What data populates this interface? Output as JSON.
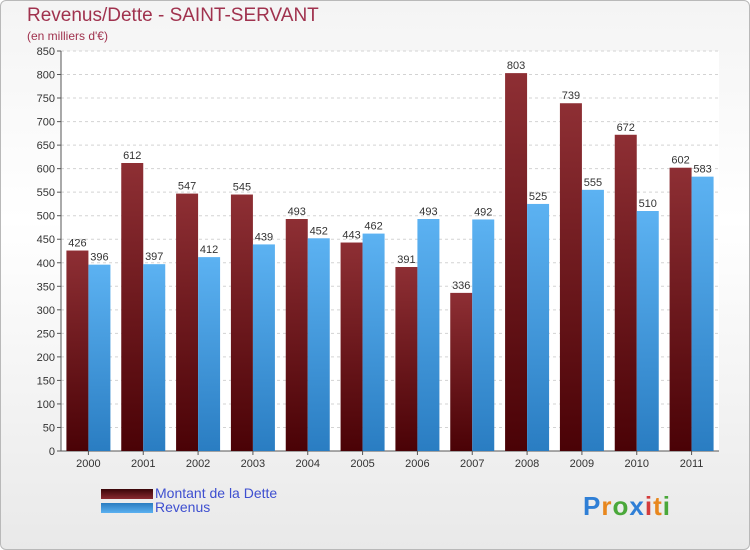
{
  "chart_data": {
    "type": "bar",
    "title": "Revenus/Dette - SAINT-SERVANT",
    "subtitle": "(en milliers d'€)",
    "categories": [
      "2000",
      "2001",
      "2002",
      "2003",
      "2004",
      "2005",
      "2006",
      "2007",
      "2008",
      "2009",
      "2010",
      "2011"
    ],
    "series": [
      {
        "name": "Montant de la Dette",
        "color": "#7a1c22",
        "values": [
          426,
          612,
          547,
          545,
          493,
          443,
          391,
          336,
          803,
          739,
          672,
          602
        ]
      },
      {
        "name": "Revenus",
        "color": "#4aa3e6",
        "values": [
          396,
          397,
          412,
          439,
          452,
          462,
          493,
          492,
          525,
          555,
          510,
          583
        ]
      }
    ],
    "ylim": [
      0,
      850
    ],
    "yticks": [
      0,
      50,
      100,
      150,
      200,
      250,
      300,
      350,
      400,
      450,
      500,
      550,
      600,
      650,
      700,
      750,
      800,
      850
    ],
    "grid": true,
    "legend_position": "bottom-left"
  },
  "logo": {
    "text": "Proxiti"
  }
}
